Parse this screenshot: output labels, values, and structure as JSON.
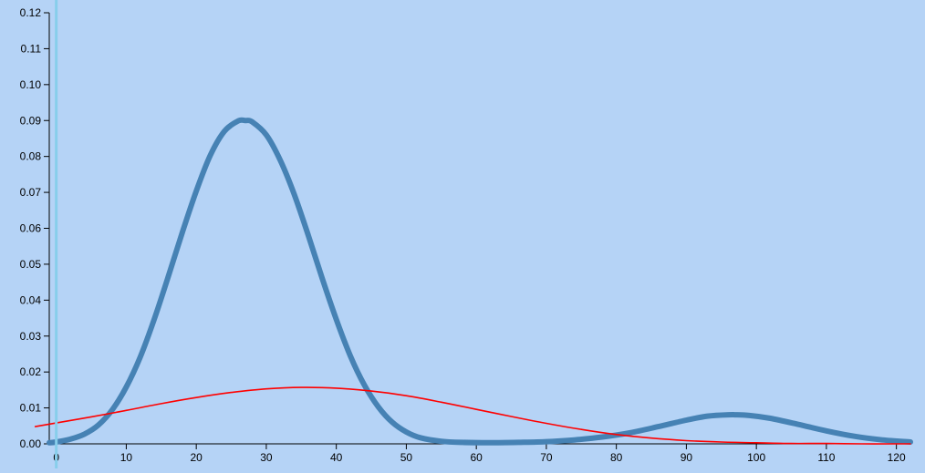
{
  "chart_data": {
    "type": "line",
    "title": "",
    "xlabel": "",
    "ylabel": "",
    "xlim": [
      -1,
      122
    ],
    "ylim": [
      0,
      0.12
    ],
    "x_ticks": [
      0,
      10,
      20,
      30,
      40,
      50,
      60,
      70,
      80,
      90,
      100,
      110,
      120
    ],
    "x_tick_labels": [
      "0",
      "10",
      "20",
      "30",
      "40",
      "50",
      "60",
      "70",
      "80",
      "90",
      "100",
      "110",
      "120"
    ],
    "y_ticks": [
      0,
      0.01,
      0.02,
      0.03,
      0.04,
      0.05,
      0.06,
      0.07,
      0.08,
      0.09,
      0.1,
      0.11,
      0.12
    ],
    "y_tick_labels": [
      "0.00",
      "0.01",
      "0.02",
      "0.03",
      "0.04",
      "0.05",
      "0.06",
      "0.07",
      "0.08",
      "0.09",
      "0.10",
      "0.11",
      "0.12"
    ],
    "grid": false,
    "legend": "none",
    "marker_x": 0,
    "series": [
      {
        "color": "#4682b4",
        "x": [
          -1,
          0,
          2,
          4,
          6,
          8,
          10,
          12,
          14,
          16,
          18,
          20,
          22,
          24,
          26,
          27,
          28,
          30,
          32,
          34,
          36,
          38,
          40,
          42,
          44,
          46,
          48,
          50,
          52,
          55,
          58,
          62,
          66,
          70,
          74,
          78,
          82,
          86,
          90,
          93,
          96,
          97,
          99,
          102,
          106,
          110,
          114,
          118,
          122
        ],
        "y": [
          0.0003,
          0.0005,
          0.0013,
          0.0027,
          0.0052,
          0.0095,
          0.0158,
          0.0242,
          0.0347,
          0.0466,
          0.0588,
          0.0704,
          0.0803,
          0.087,
          0.0899,
          0.09,
          0.0896,
          0.086,
          0.0789,
          0.0694,
          0.058,
          0.046,
          0.0346,
          0.0245,
          0.0164,
          0.0103,
          0.006,
          0.0033,
          0.0017,
          0.0007,
          0.0004,
          0.0003,
          0.0004,
          0.0006,
          0.0011,
          0.0019,
          0.0031,
          0.0048,
          0.0066,
          0.0077,
          0.0081,
          0.0081,
          0.0079,
          0.0071,
          0.0054,
          0.0036,
          0.0021,
          0.0011,
          0.0005
        ]
      },
      {
        "color": "#ff0000",
        "x": [
          -3,
          0,
          5,
          10,
          15,
          20,
          25,
          30,
          35,
          40,
          45,
          50,
          55,
          60,
          65,
          70,
          75,
          80,
          85,
          90,
          95,
          100,
          105,
          110,
          115,
          120,
          122
        ],
        "y": [
          0.0048,
          0.0058,
          0.0075,
          0.0093,
          0.0112,
          0.0129,
          0.0143,
          0.0153,
          0.0157,
          0.0155,
          0.0147,
          0.0134,
          0.0116,
          0.0096,
          0.0076,
          0.0057,
          0.004,
          0.0026,
          0.0016,
          0.0009,
          0.0005,
          0.0003,
          0.0001,
          0.0001,
          0.0,
          0.0,
          0.0
        ]
      }
    ]
  }
}
